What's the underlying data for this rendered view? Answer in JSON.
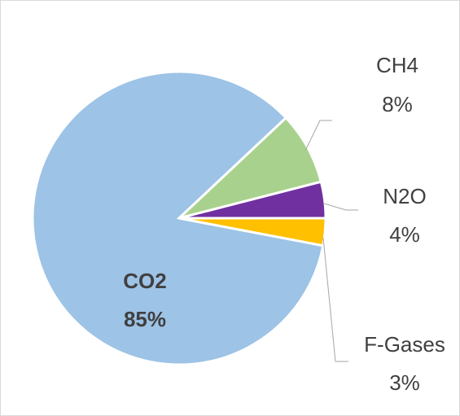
{
  "chart_data": {
    "type": "pie",
    "categories": [
      "CO2",
      "CH4",
      "N2O",
      "F-Gases"
    ],
    "values": [
      85,
      8,
      4,
      3
    ],
    "value_labels": [
      "85%",
      "8%",
      "4%",
      "3%"
    ],
    "colors": [
      "#9dc3e6",
      "#a9d18e",
      "#7030a0",
      "#ffc000"
    ]
  }
}
